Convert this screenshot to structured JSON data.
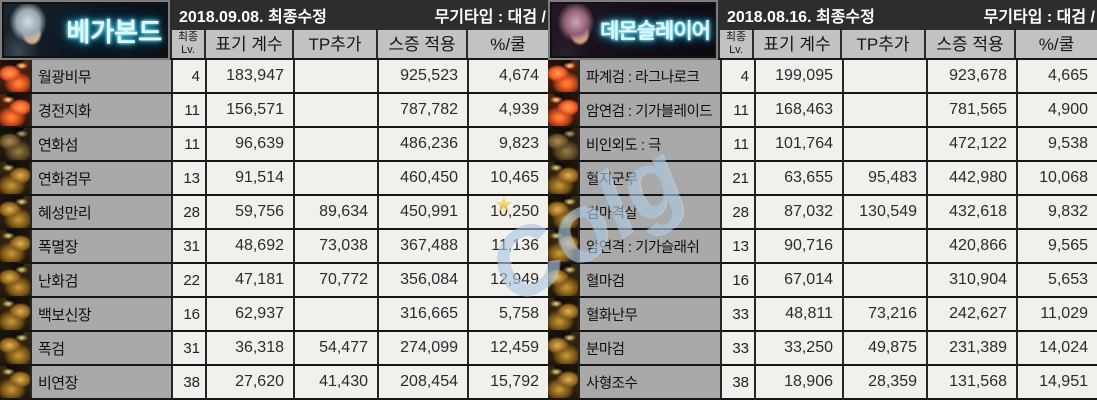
{
  "watermark": {
    "text": "Colg",
    "star": "★"
  },
  "panels": [
    {
      "name": "베가본드",
      "date_text": "2018.09.08. 최종수정",
      "weapon_text": "무기타입 : 대검 /",
      "headers": {
        "lv_top": "최종",
        "lv_bottom": "Lv.",
        "coef": "표기 계수",
        "tp": "TP추가",
        "swell": "스증 적용",
        "pct": "%/쿨"
      },
      "rows": [
        {
          "skill": "월광비무",
          "lv": "4",
          "coef": "183,947",
          "tp": "",
          "swell": "925,523",
          "pct": "4,674"
        },
        {
          "skill": "경전지화",
          "lv": "11",
          "coef": "156,571",
          "tp": "",
          "swell": "787,782",
          "pct": "4,939"
        },
        {
          "skill": "연화섬",
          "lv": "11",
          "coef": "96,639",
          "tp": "",
          "swell": "486,236",
          "pct": "9,823"
        },
        {
          "skill": "연화검무",
          "lv": "13",
          "coef": "91,514",
          "tp": "",
          "swell": "460,450",
          "pct": "10,465"
        },
        {
          "skill": "혜성만리",
          "lv": "28",
          "coef": "59,756",
          "tp": "89,634",
          "swell": "450,991",
          "pct": "10,250"
        },
        {
          "skill": "폭멸장",
          "lv": "31",
          "coef": "48,692",
          "tp": "73,038",
          "swell": "367,488",
          "pct": "11,136"
        },
        {
          "skill": "난화검",
          "lv": "22",
          "coef": "47,181",
          "tp": "70,772",
          "swell": "356,084",
          "pct": "12,949"
        },
        {
          "skill": "백보신장",
          "lv": "16",
          "coef": "62,937",
          "tp": "",
          "swell": "316,665",
          "pct": "5,758"
        },
        {
          "skill": "폭검",
          "lv": "31",
          "coef": "36,318",
          "tp": "54,477",
          "swell": "274,099",
          "pct": "12,459"
        },
        {
          "skill": "비연장",
          "lv": "38",
          "coef": "27,620",
          "tp": "41,430",
          "swell": "208,454",
          "pct": "15,792"
        }
      ]
    },
    {
      "name": "데몬슬레이어",
      "date_text": "2018.08.16. 최종수정",
      "weapon_text": "무기타입 : 대검 /",
      "headers": {
        "lv_top": "최종",
        "lv_bottom": "Lv.",
        "coef": "표기 계수",
        "tp": "TP추가",
        "swell": "스증 적용",
        "pct": "%/쿨"
      },
      "rows": [
        {
          "skill": "파계검 : 라그나로크",
          "lv": "4",
          "coef": "199,095",
          "tp": "",
          "swell": "923,678",
          "pct": "4,665"
        },
        {
          "skill": "암연검 : 기가블레이드",
          "lv": "11",
          "coef": "168,463",
          "tp": "",
          "swell": "781,565",
          "pct": "4,900"
        },
        {
          "skill": "비인외도 : 극",
          "lv": "11",
          "coef": "101,764",
          "tp": "",
          "swell": "472,122",
          "pct": "9,538"
        },
        {
          "skill": "혈지군무",
          "lv": "21",
          "coef": "63,655",
          "tp": "95,483",
          "swell": "442,980",
          "pct": "10,068"
        },
        {
          "skill": "검마격살",
          "lv": "28",
          "coef": "87,032",
          "tp": "130,549",
          "swell": "432,618",
          "pct": "9,832"
        },
        {
          "skill": "암연격 : 기가슬래쉬",
          "lv": "13",
          "coef": "90,716",
          "tp": "",
          "swell": "420,866",
          "pct": "9,565"
        },
        {
          "skill": "혈마검",
          "lv": "16",
          "coef": "67,014",
          "tp": "",
          "swell": "310,904",
          "pct": "5,653"
        },
        {
          "skill": "혈화난무",
          "lv": "33",
          "coef": "48,811",
          "tp": "73,216",
          "swell": "242,627",
          "pct": "11,029"
        },
        {
          "skill": "분마검",
          "lv": "33",
          "coef": "33,250",
          "tp": "49,875",
          "swell": "231,389",
          "pct": "14,024"
        },
        {
          "skill": "사형조수",
          "lv": "38",
          "coef": "18,906",
          "tp": "28,359",
          "swell": "131,568",
          "pct": "14,951"
        }
      ]
    }
  ]
}
